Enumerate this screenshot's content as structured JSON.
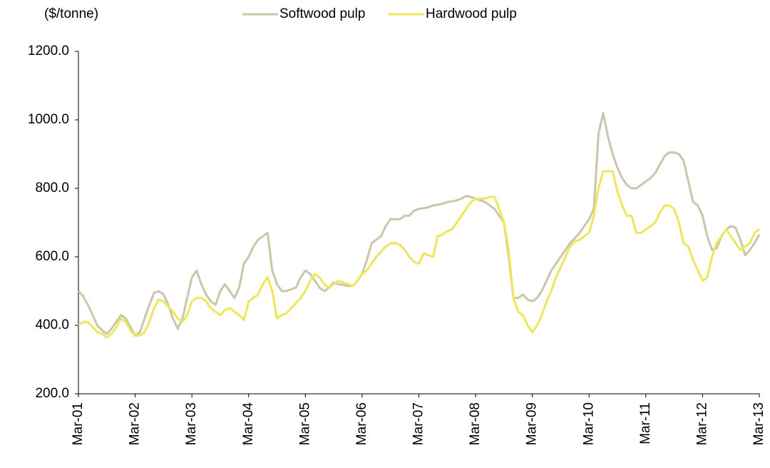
{
  "chart_data": {
    "type": "line",
    "y_label": "($/tonne)",
    "categories": [
      "Mar-01",
      null,
      null,
      null,
      null,
      null,
      null,
      null,
      null,
      null,
      null,
      null,
      "Mar-02",
      null,
      null,
      null,
      null,
      null,
      null,
      null,
      null,
      null,
      null,
      null,
      "Mar-03",
      null,
      null,
      null,
      null,
      null,
      null,
      null,
      null,
      null,
      null,
      null,
      "Mar-04",
      null,
      null,
      null,
      null,
      null,
      null,
      null,
      null,
      null,
      null,
      null,
      "Mar-05",
      null,
      null,
      null,
      null,
      null,
      null,
      null,
      null,
      null,
      null,
      null,
      "Mar-06",
      null,
      null,
      null,
      null,
      null,
      null,
      null,
      null,
      null,
      null,
      null,
      "Mar-07",
      null,
      null,
      null,
      null,
      null,
      null,
      null,
      null,
      null,
      null,
      null,
      "Mar-08",
      null,
      null,
      null,
      null,
      null,
      null,
      null,
      null,
      null,
      null,
      null,
      "Mar-09",
      null,
      null,
      null,
      null,
      null,
      null,
      null,
      null,
      null,
      null,
      null,
      "Mar-10",
      null,
      null,
      null,
      null,
      null,
      null,
      null,
      null,
      null,
      null,
      null,
      "Mar-11",
      null,
      null,
      null,
      null,
      null,
      null,
      null,
      null,
      null,
      null,
      null,
      "Mar-12",
      null,
      null,
      null,
      null,
      null,
      null,
      null,
      null,
      null,
      null,
      null,
      "Mar-13"
    ],
    "series": [
      {
        "name": "Softwood pulp",
        "color": "#c9c6a9",
        "values": [
          500,
          485,
          460,
          430,
          400,
          385,
          375,
          390,
          410,
          430,
          420,
          395,
          370,
          380,
          420,
          460,
          495,
          500,
          490,
          460,
          420,
          390,
          420,
          480,
          540,
          560,
          520,
          490,
          470,
          460,
          500,
          520,
          500,
          480,
          510,
          580,
          600,
          630,
          650,
          660,
          670,
          560,
          520,
          500,
          500,
          505,
          510,
          540,
          560,
          550,
          530,
          510,
          500,
          510,
          525,
          520,
          518,
          515,
          515,
          530,
          550,
          590,
          640,
          650,
          660,
          690,
          710,
          710,
          710,
          720,
          720,
          735,
          740,
          742,
          745,
          750,
          752,
          755,
          760,
          762,
          765,
          770,
          778,
          775,
          770,
          765,
          760,
          750,
          740,
          720,
          700,
          600,
          480,
          480,
          490,
          475,
          470,
          480,
          500,
          530,
          560,
          580,
          600,
          620,
          640,
          655,
          670,
          690,
          710,
          740,
          960,
          1020,
          950,
          900,
          860,
          830,
          810,
          800,
          800,
          810,
          820,
          830,
          845,
          870,
          895,
          905,
          905,
          900,
          880,
          820,
          760,
          750,
          720,
          660,
          620,
          625,
          660,
          680,
          690,
          685,
          650,
          605,
          620,
          640,
          665
        ]
      },
      {
        "name": "Hardwood pulp",
        "color": "#efe65a",
        "values": [
          400,
          410,
          410,
          395,
          380,
          375,
          365,
          375,
          395,
          420,
          410,
          385,
          370,
          370,
          380,
          410,
          450,
          475,
          470,
          455,
          440,
          420,
          410,
          430,
          470,
          480,
          480,
          470,
          450,
          440,
          430,
          445,
          450,
          440,
          430,
          415,
          470,
          480,
          490,
          520,
          540,
          500,
          420,
          430,
          435,
          450,
          465,
          480,
          500,
          530,
          550,
          540,
          520,
          510,
          520,
          530,
          525,
          520,
          515,
          530,
          550,
          560,
          580,
          600,
          615,
          630,
          640,
          640,
          635,
          620,
          600,
          585,
          580,
          610,
          605,
          600,
          660,
          665,
          675,
          680,
          700,
          720,
          740,
          760,
          770,
          770,
          770,
          775,
          775,
          740,
          700,
          620,
          480,
          440,
          430,
          400,
          380,
          400,
          430,
          470,
          500,
          540,
          570,
          600,
          630,
          645,
          650,
          660,
          670,
          720,
          800,
          850,
          850,
          850,
          790,
          750,
          720,
          720,
          670,
          670,
          680,
          690,
          700,
          730,
          750,
          750,
          740,
          700,
          640,
          630,
          590,
          560,
          530,
          540,
          600,
          640,
          660,
          680,
          660,
          640,
          620,
          630,
          640,
          670,
          680
        ]
      }
    ],
    "ylim": [
      200,
      1200
    ],
    "yticks": [
      {
        "value": 200,
        "label": "200.0"
      },
      {
        "value": 400,
        "label": "400.0"
      },
      {
        "value": 600,
        "label": "600.0"
      },
      {
        "value": 800,
        "label": "800.0"
      },
      {
        "value": 1000,
        "label": "1000.0"
      },
      {
        "value": 1200,
        "label": "1200.0"
      }
    ]
  }
}
